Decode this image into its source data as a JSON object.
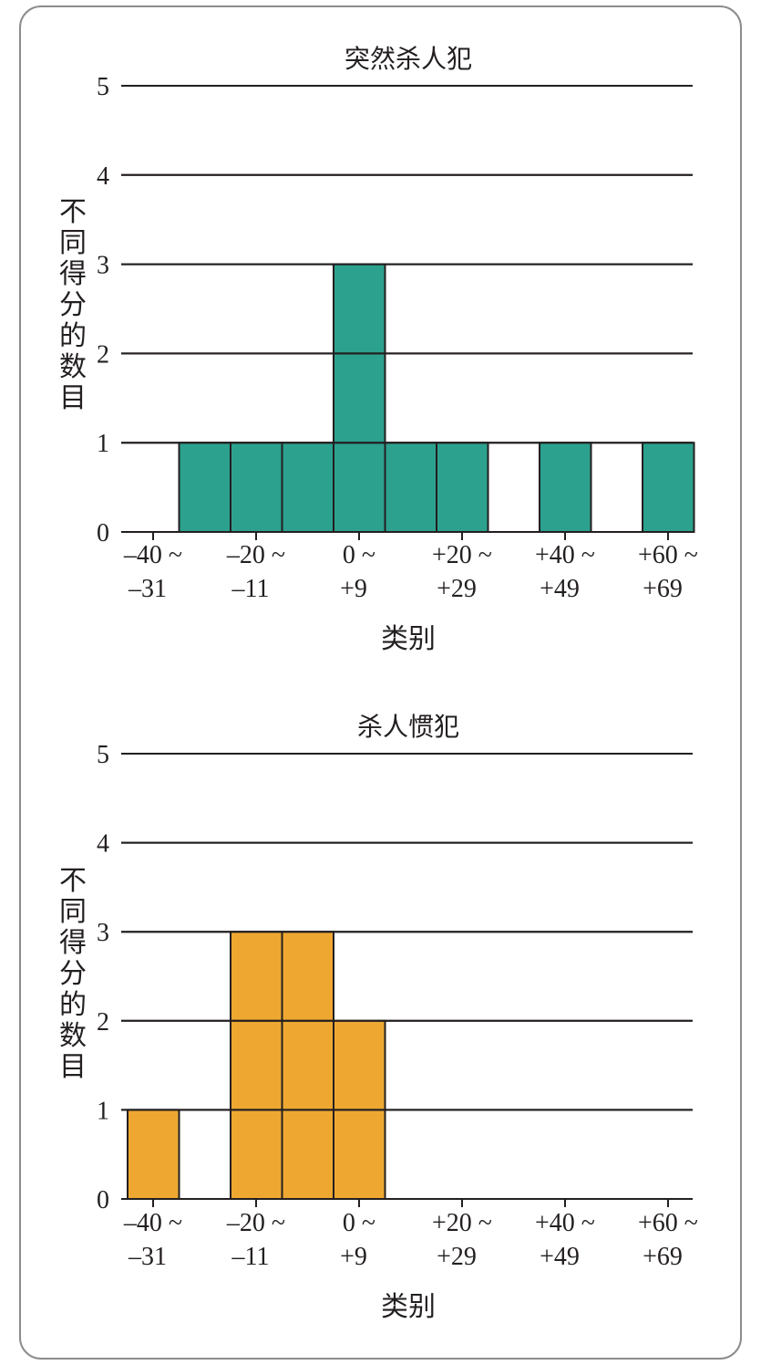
{
  "chart_data": [
    {
      "type": "bar",
      "title": "突然杀人犯",
      "ylabel": "不同得分的数目",
      "xlabel": "类别",
      "ylim": [
        0,
        5
      ],
      "yticks": [
        "0",
        "1",
        "2",
        "3",
        "4",
        "5"
      ],
      "xtick_labels": [
        {
          "line1": "–40 ~",
          "line2": "–31"
        },
        {
          "line1": "–20 ~",
          "line2": "–11"
        },
        {
          "line1": "0 ~",
          "line2": "+9"
        },
        {
          "line1": "+20 ~",
          "line2": "+29"
        },
        {
          "line1": "+40 ~",
          "line2": "+49"
        },
        {
          "line1": "+60 ~",
          "line2": "+69"
        }
      ],
      "bin_starts": [
        -40,
        -30,
        -20,
        -10,
        0,
        10,
        20,
        30,
        40,
        50,
        60
      ],
      "values": [
        0,
        1,
        1,
        1,
        3,
        1,
        1,
        0,
        1,
        0,
        1
      ],
      "color": "#2ca18e",
      "grid": true
    },
    {
      "type": "bar",
      "title": "杀人惯犯",
      "ylabel": "不同得分的数目",
      "xlabel": "类别",
      "ylim": [
        0,
        5
      ],
      "yticks": [
        "0",
        "1",
        "2",
        "3",
        "4",
        "5"
      ],
      "xtick_labels": [
        {
          "line1": "–40 ~",
          "line2": "–31"
        },
        {
          "line1": "–20 ~",
          "line2": "–11"
        },
        {
          "line1": "0 ~",
          "line2": "+9"
        },
        {
          "line1": "+20 ~",
          "line2": "+29"
        },
        {
          "line1": "+40 ~",
          "line2": "+49"
        },
        {
          "line1": "+60 ~",
          "line2": "+69"
        }
      ],
      "bin_starts": [
        -40,
        -30,
        -20,
        -10,
        0,
        10,
        20,
        30,
        40,
        50,
        60
      ],
      "values": [
        1,
        0,
        3,
        3,
        2,
        0,
        0,
        0,
        0,
        0,
        0
      ],
      "color": "#eea832",
      "grid": true
    }
  ]
}
